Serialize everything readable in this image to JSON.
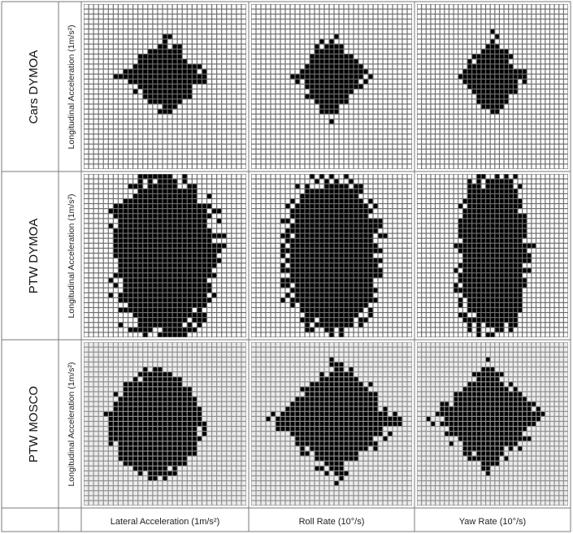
{
  "colors": {
    "cell_fill_normal": "#ffffff",
    "cell_fill_light": "#ececec",
    "grid_bg_normal": "#6e6e6e",
    "grid_bg_light": "#8f8f8f",
    "marked_cell": "#000000",
    "table_border": "#7a7a7a"
  },
  "chart_data": {
    "type": "heatmap",
    "title": "",
    "description_type": "occupancy grids (binary) of vehicle dynamics",
    "rows": [
      {
        "label": "Cars DYMOA",
        "ylabel": "Longitudinal Acceleration (1m/s²)"
      },
      {
        "label": "PTW DYMOA",
        "ylabel": "Longitudinal Acceleration (1m/s²)"
      },
      {
        "label": "PTW MOSCO",
        "ylabel": "Longitudinal Acceleration (1m/s²)"
      }
    ],
    "columns": [
      {
        "xlabel": "Lateral Acceleration (1m/s²)"
      },
      {
        "xlabel": "Roll Rate (10°/s)"
      },
      {
        "xlabel": "Yaw Rate (10°/s)"
      }
    ],
    "grid_resolution": {
      "cols": 33,
      "rows": 33
    },
    "panels": [
      {
        "row": 0,
        "col": 0,
        "shape": "diamond",
        "center": [
          16,
          14
        ],
        "halfwidth": [
          9,
          8
        ]
      },
      {
        "row": 0,
        "col": 1,
        "shape": "diamond",
        "center": [
          16,
          14
        ],
        "halfwidth": [
          8,
          8
        ]
      },
      {
        "row": 0,
        "col": 2,
        "shape": "diamond",
        "center": [
          16,
          14
        ],
        "halfwidth": [
          7,
          8
        ]
      },
      {
        "row": 1,
        "col": 0,
        "shape": "oval",
        "center": [
          16,
          16
        ],
        "halfwidth": [
          11,
          17
        ]
      },
      {
        "row": 1,
        "col": 1,
        "shape": "oval",
        "center": [
          16,
          16
        ],
        "halfwidth": [
          10,
          16
        ]
      },
      {
        "row": 1,
        "col": 2,
        "shape": "oval",
        "center": [
          16,
          16
        ],
        "halfwidth": [
          8,
          17
        ]
      },
      {
        "row": 2,
        "col": 0,
        "shape": "blob",
        "center": [
          14,
          16
        ],
        "halfwidth": [
          10,
          11
        ]
      },
      {
        "row": 2,
        "col": 1,
        "shape": "diamond",
        "center": [
          17,
          15
        ],
        "halfwidth": [
          13,
          12
        ]
      },
      {
        "row": 2,
        "col": 2,
        "shape": "diamond",
        "center": [
          15,
          15
        ],
        "halfwidth": [
          12,
          11
        ]
      }
    ]
  }
}
